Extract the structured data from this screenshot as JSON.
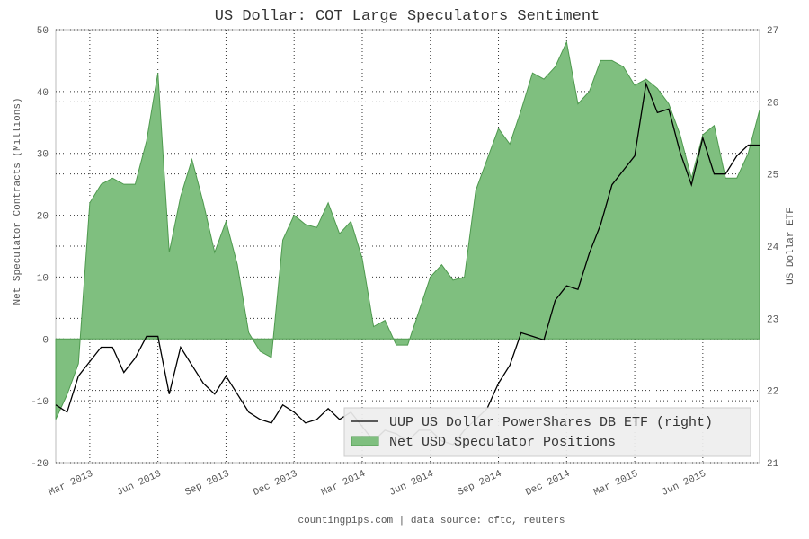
{
  "chart_data": {
    "type": "area",
    "title": "US Dollar: COT Large Speculators Sentiment",
    "y_label": "Net Speculator Contracts (Millions)",
    "y2_label": "US Dollar ETF",
    "footer": "countingpips.com | data source: cftc, reuters",
    "categories": [
      null,
      null,
      null,
      "Mar 2013",
      null,
      null,
      null,
      null,
      null,
      "Jun 2013",
      null,
      null,
      null,
      null,
      null,
      "Sep 2013",
      null,
      null,
      null,
      null,
      null,
      "Dec 2013",
      null,
      null,
      null,
      null,
      null,
      "Mar 2014",
      null,
      null,
      null,
      null,
      null,
      "Jun 2014",
      null,
      null,
      null,
      null,
      null,
      "Sep 2014",
      null,
      null,
      null,
      null,
      null,
      "Dec 2014",
      null,
      null,
      null,
      null,
      null,
      "Mar 2015",
      null,
      null,
      null,
      null,
      null,
      "Jun 2015",
      null,
      null,
      null,
      null,
      null
    ],
    "ylim": [
      -20,
      50
    ],
    "yticks": [
      -20,
      -10,
      0,
      10,
      20,
      30,
      40,
      50
    ],
    "y2lim": [
      21,
      27
    ],
    "y2ticks": [
      21,
      22,
      23,
      24,
      25,
      26,
      27
    ],
    "grid": true,
    "legend": "lower right",
    "series": [
      {
        "name": "UUP US Dollar PowerShares DB ETF (right)",
        "type": "line",
        "axis": "y2",
        "color": "#000000",
        "values": [
          21.8,
          21.7,
          22.2,
          22.4,
          22.6,
          22.6,
          22.25,
          22.45,
          22.75,
          22.75,
          21.95,
          22.6,
          22.35,
          22.1,
          21.95,
          22.2,
          21.95,
          21.7,
          21.6,
          21.55,
          21.8,
          21.7,
          21.55,
          21.6,
          21.75,
          21.6,
          21.7,
          21.5,
          21.3,
          21.45,
          21.4,
          21.3,
          21.45,
          21.45,
          21.3,
          21.25,
          21.45,
          21.6,
          21.75,
          22.1,
          22.35,
          22.8,
          22.75,
          22.7,
          23.25,
          23.45,
          23.4,
          23.9,
          24.3,
          24.85,
          25.05,
          25.25,
          26.25,
          25.85,
          25.9,
          25.3,
          24.85,
          25.5,
          25.0,
          25.0,
          25.25,
          25.4,
          25.4
        ]
      },
      {
        "name": "Net USD Speculator Positions",
        "type": "area",
        "axis": "y",
        "color": "#7fbf7f",
        "values": [
          -13,
          -9,
          -4,
          22,
          25,
          26,
          25,
          25,
          32,
          43,
          14,
          23,
          29,
          22,
          14,
          19,
          12,
          1,
          -2,
          -3,
          16,
          20,
          18.5,
          18,
          22,
          17,
          19,
          13,
          2,
          3,
          -1,
          -1,
          4.5,
          10,
          12,
          9.5,
          10,
          24,
          29,
          34,
          31.5,
          37,
          43,
          42,
          44,
          48,
          38,
          40,
          45,
          45,
          44,
          41,
          42,
          40.5,
          38,
          33,
          26,
          33,
          34.5,
          26,
          26,
          30,
          37
        ]
      }
    ]
  }
}
